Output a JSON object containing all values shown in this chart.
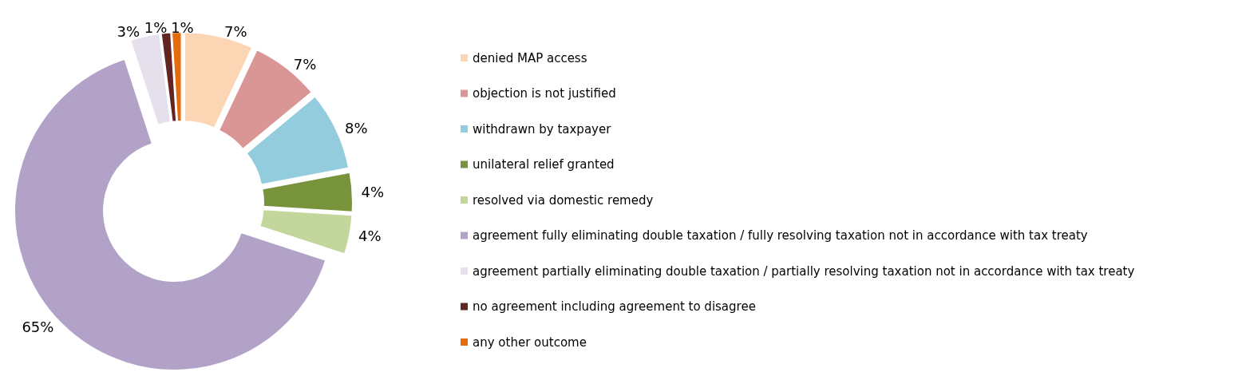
{
  "chart_data": {
    "type": "donut",
    "categories": [
      "denied MAP access",
      "objection is not justified",
      "withdrawn by taxpayer",
      "unilateral relief granted",
      "resolved via domestic remedy",
      "agreement fully eliminating double taxation / fully resolving taxation not in accordance with tax treaty",
      "agreement partially eliminating double taxation / partially resolving taxation not in accordance with tax treaty",
      "no agreement including agreement to disagree",
      "any other outcome"
    ],
    "values": [
      7,
      7,
      8,
      4,
      4,
      65,
      3,
      1,
      1
    ],
    "colors": [
      "#fcd5b5",
      "#d99694",
      "#93cddd",
      "#77933c",
      "#c3d69b",
      "#b3a2c7",
      "#e6e0ec",
      "#632523",
      "#e46c0a"
    ],
    "value_labels": [
      "7%",
      "7%",
      "8%",
      "4%",
      "4%",
      "65%",
      "3%",
      "1%",
      "1%"
    ],
    "legend": "right"
  }
}
